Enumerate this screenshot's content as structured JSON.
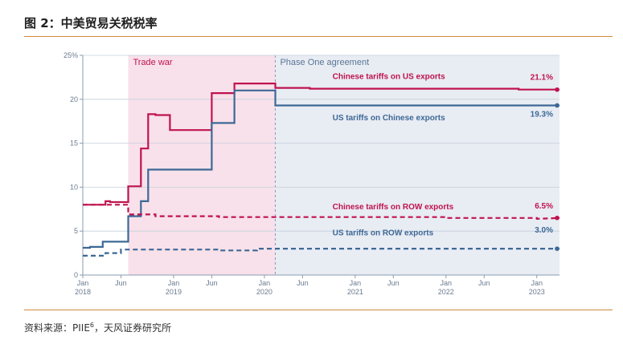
{
  "figure": {
    "title": "图 2：中美贸易关税税率",
    "source_prefix": "资料来源：PIIE",
    "source_sup": "6",
    "source_suffix": "，天风证券研究所"
  },
  "chart_data": {
    "type": "line",
    "title": "",
    "xlabel": "",
    "ylabel": "",
    "ylim": [
      0,
      25
    ],
    "y_ticks": [
      "0",
      "5",
      "10",
      "15",
      "20",
      "25%"
    ],
    "x_ticks": [
      {
        "label": "Jan",
        "year": "2018",
        "x": 2018.0
      },
      {
        "label": "Jun",
        "year": "",
        "x": 2018.42
      },
      {
        "label": "Jan",
        "year": "2019",
        "x": 2019.0
      },
      {
        "label": "Jun",
        "year": "",
        "x": 2019.42
      },
      {
        "label": "Jan",
        "year": "2020",
        "x": 2020.0
      },
      {
        "label": "Jun",
        "year": "",
        "x": 2020.42
      },
      {
        "label": "Jan",
        "year": "2021",
        "x": 2021.0
      },
      {
        "label": "Jun",
        "year": "",
        "x": 2021.42
      },
      {
        "label": "Jan",
        "year": "2022",
        "x": 2022.0
      },
      {
        "label": "Jun",
        "year": "",
        "x": 2022.42
      },
      {
        "label": "Jan",
        "year": "2023",
        "x": 2023.0
      }
    ],
    "x_range": [
      2018.0,
      2023.25
    ],
    "periods": [
      {
        "label": "Trade war",
        "start": 2018.5,
        "end": 2020.12,
        "color": "#f8e1ea"
      },
      {
        "label": "Phase One agreement",
        "start": 2020.12,
        "end": 2023.25,
        "color": "#e8ecf3"
      }
    ],
    "series": [
      {
        "name": "Chinese tariffs on US exports",
        "color": "#c0134f",
        "dash": false,
        "end_label": "21.1%",
        "x": [
          2018.0,
          2018.25,
          2018.25,
          2018.3,
          2018.3,
          2018.5,
          2018.5,
          2018.64,
          2018.64,
          2018.72,
          2018.72,
          2018.8,
          2018.8,
          2018.96,
          2018.96,
          2019.42,
          2019.42,
          2019.67,
          2019.67,
          2020.12,
          2020.12,
          2020.5,
          2020.5,
          2022.8,
          2022.8,
          2023.25
        ],
        "values": [
          8.0,
          8.0,
          8.4,
          8.4,
          8.3,
          8.3,
          10.1,
          10.1,
          14.4,
          14.4,
          18.3,
          18.3,
          18.2,
          18.2,
          16.5,
          16.5,
          20.7,
          20.7,
          21.8,
          21.8,
          21.3,
          21.3,
          21.2,
          21.2,
          21.1,
          21.1
        ]
      },
      {
        "name": "US tariffs on Chinese exports",
        "color": "#3d6896",
        "dash": false,
        "end_label": "19.3%",
        "x": [
          2018.0,
          2018.08,
          2018.08,
          2018.22,
          2018.22,
          2018.5,
          2018.5,
          2018.64,
          2018.64,
          2018.72,
          2018.72,
          2019.42,
          2019.42,
          2019.67,
          2019.67,
          2020.12,
          2020.12,
          2023.25
        ],
        "values": [
          3.1,
          3.1,
          3.2,
          3.2,
          3.8,
          3.8,
          6.7,
          6.7,
          8.4,
          8.4,
          12.0,
          12.0,
          17.3,
          17.3,
          21.0,
          21.0,
          19.3,
          19.3
        ]
      },
      {
        "name": "Chinese tariffs on ROW exports",
        "color": "#c0134f",
        "dash": true,
        "end_label": "6.5%",
        "x": [
          2018.0,
          2018.5,
          2018.5,
          2018.8,
          2018.8,
          2019.5,
          2019.5,
          2022.0,
          2022.0,
          2023.0,
          2023.0,
          2023.25
        ],
        "values": [
          8.0,
          8.0,
          6.9,
          6.9,
          6.7,
          6.7,
          6.6,
          6.6,
          6.5,
          6.5,
          6.4,
          6.5
        ]
      },
      {
        "name": "US tariffs on ROW exports",
        "color": "#3d6896",
        "dash": true,
        "end_label": "3.0%",
        "x": [
          2018.0,
          2018.25,
          2018.25,
          2018.42,
          2018.42,
          2019.5,
          2019.5,
          2019.92,
          2019.92,
          2023.25
        ],
        "values": [
          2.2,
          2.2,
          2.5,
          2.5,
          2.9,
          2.9,
          2.8,
          2.8,
          3.0,
          3.0
        ]
      }
    ]
  }
}
